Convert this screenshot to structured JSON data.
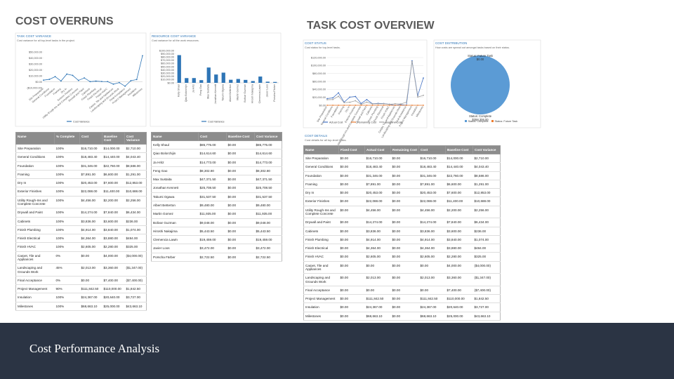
{
  "slide": {
    "left_title": "COST OVERRUNS",
    "right_title": "TASK COST OVERVIEW",
    "footer": "Cost Performance Analysis"
  },
  "chart_data": [
    {
      "type": "line",
      "title": "TASK COST VARIANCE",
      "subtitle": "Cost variance for all top-level tasks in the project.",
      "categories": [
        "Site Preparation",
        "General Conditions",
        "Foundation",
        "Framing",
        "Dry In",
        "Exterior Finishes",
        "Utility Rough-Ins and Complete Concrete",
        "Drywall and Paint",
        "Cabinets",
        "Finish Plumbing",
        "Finish Electrical",
        "Finish HVAC",
        "Carpet, Tile and Appliances",
        "Landscaping and Grounds Work",
        "Final Acceptance",
        "Project Management",
        "Insulation",
        "Milestones"
      ],
      "series": [
        {
          "name": "Cost Variance",
          "color": "#2e75b6",
          "values": [
            2710,
            4043.4,
            8586,
            1291,
            12853,
            10688,
            2256,
            6434,
            236,
            1074,
            484,
            325,
            -4000,
            -1347,
            -7400,
            1842.5,
            3727,
            43663.1
          ]
        }
      ],
      "ylim": [
        -10000,
        50000
      ],
      "yticks": [
        {
          "value": -10000,
          "label": "($10,000.00)"
        },
        {
          "value": 0,
          "label": "$0.00"
        },
        {
          "value": 10000,
          "label": "$10,000.00"
        },
        {
          "value": 20000,
          "label": "$20,000.00"
        },
        {
          "value": 30000,
          "label": "$30,000.00"
        },
        {
          "value": 40000,
          "label": "$40,000.00"
        },
        {
          "value": 50000,
          "label": "$50,000.00"
        }
      ],
      "grid": false
    },
    {
      "type": "bar",
      "title": "RESOURCE COST VARIANCE",
      "subtitle": "Cost variance for all the work resources.",
      "categories": [
        "Kelly Shaul",
        "Qiao Bolorchijin",
        "Ja Hritz",
        "Feng Gao",
        "Max Sustaita",
        "Jonathan Kennett",
        "Takumi Ogawa",
        "Albert Betterton",
        "Martin Gomez",
        "Bolivar Guzman",
        "Hiroshi Nakajima",
        "Clemencia Lawin",
        "Javier Loos",
        "Porscha Färber"
      ],
      "series": [
        {
          "name": "Cost Variance",
          "color": "#2e75b6",
          "values": [
            85775,
            14614.6,
            14773,
            8302.8,
            47371.5,
            25708.5,
            31537.5,
            9480,
            11935,
            9048,
            5443.5,
            19459,
            3472,
            2722.5
          ]
        }
      ],
      "ylim": [
        0,
        100000
      ],
      "yticks": [
        {
          "value": 0,
          "label": "$0.00"
        },
        {
          "value": 10000,
          "label": "$10,000.00"
        },
        {
          "value": 20000,
          "label": "$20,000.00"
        },
        {
          "value": 30000,
          "label": "$30,000.00"
        },
        {
          "value": 40000,
          "label": "$40,000.00"
        },
        {
          "value": 50000,
          "label": "$50,000.00"
        },
        {
          "value": 60000,
          "label": "$60,000.00"
        },
        {
          "value": 70000,
          "label": "$70,000.00"
        },
        {
          "value": 80000,
          "label": "$80,000.00"
        },
        {
          "value": 90000,
          "label": "$90,000.00"
        },
        {
          "value": 100000,
          "label": "$100,000.00"
        }
      ],
      "grid": false
    },
    {
      "type": "line",
      "title": "COST STATUS",
      "subtitle": "Cost status for top-level tasks.",
      "categories": [
        "Site Preparation",
        "General Conditions",
        "Foundation",
        "Framing",
        "Dry In",
        "Exterior Finishes",
        "Utility Rough-Ins and Complete Concrete",
        "Drywall and Paint",
        "Cabinets",
        "Finish Plumbing",
        "Finish Electrical",
        "Finish HVAC",
        "Carpet, Tile and Appliances",
        "Landscaping and Grounds Work",
        "Final Acceptance",
        "Project Management",
        "Insulation",
        "Milestones"
      ],
      "series": [
        {
          "name": "Actual Cost",
          "color": "#4472c4",
          "values": [
            16710,
            18483.4,
            31346,
            7891,
            20453,
            22088,
            4456,
            14274,
            3836,
            4914,
            4364,
            2605,
            0,
            2013,
            0,
            111842.5,
            24367,
            68663.1
          ]
        },
        {
          "name": "Remaining Cost",
          "color": "#ed7d31",
          "values": [
            0,
            0,
            0,
            0,
            0,
            0,
            0,
            0,
            0,
            0,
            0,
            0,
            0,
            0,
            0,
            0,
            0,
            0
          ]
        },
        {
          "name": "Baseline Cost",
          "color": "#a5a5a5",
          "values": [
            14000,
            14440,
            22760,
            6600,
            7600,
            11400,
            2200,
            7840,
            3600,
            3840,
            3880,
            2280,
            4000,
            3360,
            7400,
            110000,
            20640,
            25000
          ]
        }
      ],
      "ylim": [
        0,
        120000
      ],
      "yticks": [
        {
          "value": 0,
          "label": "$0.00"
        },
        {
          "value": 20000,
          "label": "$20,000.00"
        },
        {
          "value": 40000,
          "label": "$40,000.00"
        },
        {
          "value": 60000,
          "label": "$60,000.00"
        },
        {
          "value": 80000,
          "label": "$80,000.00"
        },
        {
          "value": 100000,
          "label": "$100,000.00"
        },
        {
          "value": 120000,
          "label": "$120,000.00"
        }
      ],
      "grid": true
    },
    {
      "type": "pie",
      "title": "COST DISTRIBUTION",
      "subtitle": "How costs are spread out amongst tasks based on their status.",
      "slices": [
        {
          "name": "Status: Complete",
          "value": 358306,
          "value_label": "$358,306.00",
          "color": "#5b9bd5"
        },
        {
          "name": "Status: Future Task",
          "value": 0,
          "value_label": "$0.00",
          "color": "#ed7d31"
        }
      ]
    }
  ],
  "tables": [
    {
      "columns": [
        "Name",
        "% Complete",
        "Cost",
        "Baseline Cost",
        "Cost Variance"
      ],
      "rows": [
        [
          "Site Preparation",
          "100%",
          "$16,710.00",
          "$14,000.00",
          "$2,710.00"
        ],
        [
          "General Conditions",
          "100%",
          "$18,483.40",
          "$14,440.00",
          "$4,043.40"
        ],
        [
          "Foundation",
          "100%",
          "$31,346.00",
          "$22,760.00",
          "$8,586.00"
        ],
        [
          "Framing",
          "100%",
          "$7,891.00",
          "$6,600.00",
          "$1,291.00"
        ],
        [
          "Dry In",
          "100%",
          "$20,453.00",
          "$7,600.00",
          "$12,853.00"
        ],
        [
          "Exterior Finishes",
          "100%",
          "$22,088.00",
          "$11,400.00",
          "$10,688.00"
        ],
        [
          "Utility Rough-Ins and Complete Concrete",
          "100%",
          "$4,456.00",
          "$2,200.00",
          "$2,256.00"
        ],
        [
          "Drywall and Paint",
          "100%",
          "$14,274.00",
          "$7,840.00",
          "$6,434.00"
        ],
        [
          "Cabinets",
          "100%",
          "$3,836.00",
          "$3,600.00",
          "$236.00"
        ],
        [
          "Finish Plumbing",
          "100%",
          "$4,914.00",
          "$3,840.00",
          "$1,074.00"
        ],
        [
          "Finish Electrical",
          "100%",
          "$4,364.00",
          "$3,880.00",
          "$484.00"
        ],
        [
          "Finish HVAC",
          "100%",
          "$2,605.00",
          "$2,280.00",
          "$325.00"
        ],
        [
          "Carpet, Tile and Appliances",
          "0%",
          "$0.00",
          "$4,000.00",
          "($4,000.00)"
        ],
        [
          "Landscaping and Grounds Work",
          "45%",
          "$2,013.00",
          "$3,360.00",
          "($1,347.00)"
        ],
        [
          "Final Acceptance",
          "0%",
          "$0.00",
          "$7,400.00",
          "($7,400.00)"
        ],
        [
          "Project Management",
          "90%",
          "$111,842.50",
          "$110,000.00",
          "$1,842.50"
        ],
        [
          "Insulation",
          "100%",
          "$24,367.00",
          "$20,640.00",
          "$3,727.00"
        ],
        [
          "Milestones",
          "100%",
          "$68,663.10",
          "$25,000.00",
          "$43,663.10"
        ]
      ]
    },
    {
      "columns": [
        "Name",
        "Cost",
        "Baseline Cost",
        "Cost Variance"
      ],
      "rows": [
        [
          "Kelly Shaul",
          "$85,775.00",
          "$0.00",
          "$85,775.00"
        ],
        [
          "Qiao Bolorchijin",
          "$14,614.60",
          "$0.00",
          "$14,614.60"
        ],
        [
          "Ja Hritz",
          "$14,773.00",
          "$0.00",
          "$14,773.00"
        ],
        [
          "Feng Gao",
          "$8,302.80",
          "$0.00",
          "$8,302.80"
        ],
        [
          "Max Sustaita",
          "$47,371.50",
          "$0.00",
          "$47,371.50"
        ],
        [
          "Jonathan Kennett",
          "$25,708.50",
          "$0.00",
          "$25,708.50"
        ],
        [
          "Takumi Ogawa",
          "$31,537.50",
          "$0.00",
          "$31,537.50"
        ],
        [
          "Albert Betterton",
          "$9,480.00",
          "$0.00",
          "$9,480.00"
        ],
        [
          "Martin Gomez",
          "$11,935.00",
          "$0.00",
          "$11,935.00"
        ],
        [
          "Bolivar Guzman",
          "$9,048.00",
          "$0.00",
          "$9,048.00"
        ],
        [
          "Hiroshi Nakajima",
          "$5,443.50",
          "$0.00",
          "$5,443.50"
        ],
        [
          "Clemencia Lawin",
          "$19,459.00",
          "$0.00",
          "$19,459.00"
        ],
        [
          "Javier Loos",
          "$3,472.00",
          "$0.00",
          "$3,472.00"
        ],
        [
          "Porscha Färber",
          "$2,722.50",
          "$0.00",
          "$2,722.50"
        ]
      ]
    },
    {
      "title": "COST DETAILS",
      "subtitle": "Cost details for all top-level tasks.",
      "columns": [
        "Name",
        "Fixed Cost",
        "Actual Cost",
        "Remaining Cost",
        "Cost",
        "Baseline Cost",
        "Cost Variance"
      ],
      "rows": [
        [
          "Site Preparation",
          "$0.00",
          "$16,710.00",
          "$0.00",
          "$16,710.00",
          "$14,000.00",
          "$2,710.00"
        ],
        [
          "General Conditions",
          "$0.00",
          "$18,483.40",
          "$0.00",
          "$18,483.40",
          "$14,440.00",
          "$4,043.40"
        ],
        [
          "Foundation",
          "$0.00",
          "$31,346.00",
          "$0.00",
          "$31,346.00",
          "$22,760.00",
          "$8,586.00"
        ],
        [
          "Framing",
          "$0.00",
          "$7,891.00",
          "$0.00",
          "$7,891.00",
          "$6,600.00",
          "$1,291.00"
        ],
        [
          "Dry In",
          "$0.00",
          "$20,453.00",
          "$0.00",
          "$20,453.00",
          "$7,600.00",
          "$12,853.00"
        ],
        [
          "Exterior Finishes",
          "$0.00",
          "$22,088.00",
          "$0.00",
          "$22,088.00",
          "$11,400.00",
          "$10,688.00"
        ],
        [
          "Utility Rough-Ins and Complete Concrete",
          "$0.00",
          "$4,456.00",
          "$0.00",
          "$4,456.00",
          "$2,200.00",
          "$2,256.00"
        ],
        [
          "Drywall and Paint",
          "$0.00",
          "$14,274.00",
          "$0.00",
          "$14,274.00",
          "$7,840.00",
          "$6,434.00"
        ],
        [
          "Cabinets",
          "$0.00",
          "$3,836.00",
          "$0.00",
          "$3,836.00",
          "$3,600.00",
          "$236.00"
        ],
        [
          "Finish Plumbing",
          "$0.00",
          "$4,914.00",
          "$0.00",
          "$4,914.00",
          "$3,840.00",
          "$1,074.00"
        ],
        [
          "Finish Electrical",
          "$0.00",
          "$4,364.00",
          "$0.00",
          "$4,364.00",
          "$3,880.00",
          "$484.00"
        ],
        [
          "Finish HVAC",
          "$0.00",
          "$2,605.00",
          "$0.00",
          "$2,605.00",
          "$2,280.00",
          "$325.00"
        ],
        [
          "Carpet, Tile and Appliances",
          "$0.00",
          "$0.00",
          "$0.00",
          "$0.00",
          "$4,000.00",
          "($4,000.00)"
        ],
        [
          "Landscaping and Grounds Work",
          "$0.00",
          "$2,013.00",
          "$0.00",
          "$2,013.00",
          "$3,360.00",
          "($1,347.00)"
        ],
        [
          "Final Acceptance",
          "$0.00",
          "$0.00",
          "$0.00",
          "$0.00",
          "$7,400.00",
          "($7,400.00)"
        ],
        [
          "Project Management",
          "$0.00",
          "$111,842.50",
          "$0.00",
          "$111,842.50",
          "$110,000.00",
          "$1,842.50"
        ],
        [
          "Insulation",
          "$0.00",
          "$24,367.00",
          "$0.00",
          "$24,367.00",
          "$20,640.00",
          "$3,727.00"
        ],
        [
          "Milestones",
          "$0.00",
          "$68,663.10",
          "$0.00",
          "$68,663.10",
          "$25,000.00",
          "$43,663.10"
        ]
      ]
    }
  ]
}
